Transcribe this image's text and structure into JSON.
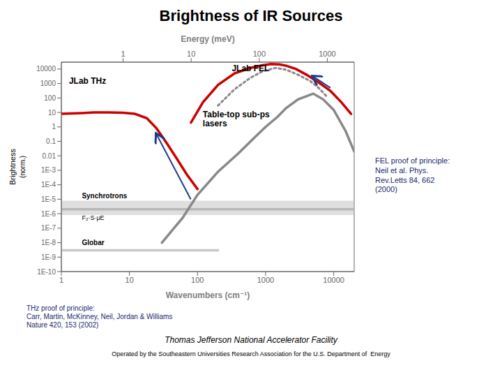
{
  "chart_data": {
    "type": "line",
    "title": "Brightness of IR Sources",
    "xlabel": "Wavenumbers (cm⁻¹)",
    "x2label": "Energy (meV)",
    "ylabel": "Brightness",
    "log": true,
    "grid": false,
    "xlim": [
      1,
      20000
    ],
    "xticks": [
      1,
      10,
      100,
      1000,
      10000
    ],
    "x2lim": [
      1,
      20000
    ],
    "x2ticks": [
      {
        "value": 8.065,
        "label": "1"
      },
      {
        "value": 80.65,
        "label": "10"
      },
      {
        "value": 806.5,
        "label": "100"
      },
      {
        "value": 8065,
        "label": "1000"
      }
    ],
    "ylim": [
      1e-10,
      30000
    ],
    "yticks": [
      {
        "value": 1e-10,
        "label": "1E-10"
      },
      {
        "value": 1e-09,
        "label": "1E-9"
      },
      {
        "value": 1e-08,
        "label": "1E-8"
      },
      {
        "value": 1e-07,
        "label": "1E-7"
      },
      {
        "value": 1e-06,
        "label": "1E-6"
      },
      {
        "value": 1e-05,
        "label": "1E-5"
      },
      {
        "value": 0.0001,
        "label": "1E-4"
      },
      {
        "value": 0.001,
        "label": "1E-3"
      },
      0.01,
      0.1,
      1,
      10,
      100,
      1000,
      10000
    ],
    "series": [
      {
        "color": "#b8b8b8",
        "x": [
          1,
          20,
          50,
          100,
          300,
          1000,
          3000,
          10000,
          20000
        ],
        "values": [
          2e-06,
          2e-06,
          2e-06,
          2e-06,
          2e-06,
          2e-06,
          2e-06,
          2e-06,
          2e-06
        ],
        "band_low": [
          8e-07,
          8e-07,
          8e-07,
          8e-07,
          8e-07,
          8e-07,
          8e-07,
          8e-07,
          8e-07
        ],
        "band_high": [
          8e-06,
          8e-06,
          8e-06,
          8e-06,
          8e-06,
          8e-06,
          8e-06,
          8e-06,
          8e-06
        ]
      },
      {
        "color": "#c8c8c8",
        "x": [
          1,
          5,
          10,
          50,
          100,
          200
        ],
        "values": [
          3e-09,
          3e-09,
          3e-09,
          3e-09,
          3e-09,
          3e-09
        ]
      },
      {
        "color": "#888888",
        "x": [
          30,
          60,
          100,
          200,
          400,
          700,
          1000,
          1500,
          2000,
          3000,
          5000,
          7000,
          10000,
          15000,
          20000
        ],
        "values": [
          1e-08,
          5e-07,
          2e-05,
          0.0008,
          0.015,
          0.2,
          1.0,
          5,
          20,
          80,
          200,
          80,
          15,
          0.5,
          0.02
        ]
      },
      {
        "color": "#cc0000",
        "x": [
          1,
          2,
          3,
          5,
          8,
          12,
          18,
          25,
          35,
          50,
          70,
          100
        ],
        "values": [
          8,
          9,
          10,
          10,
          9.5,
          8,
          4,
          0.8,
          0.08,
          0.006,
          0.0005,
          5e-05
        ]
      },
      {
        "color": "#cc0000",
        "x": [
          80,
          120,
          200,
          350,
          600,
          900,
          1200,
          1600,
          2000,
          2800,
          4000,
          6000,
          9000,
          13000,
          18000
        ],
        "values": [
          2,
          50,
          800,
          5000,
          12000,
          18000,
          22000,
          21000,
          17000,
          10000,
          4000,
          1200,
          300,
          50,
          8
        ]
      },
      {
        "color": "#888888",
        "line_style": "dotted",
        "x": [
          200,
          350,
          600,
          900,
          1400,
          2000,
          3000,
          4500,
          6000,
          8000
        ],
        "values": [
          30,
          400,
          2500,
          7000,
          12000,
          9000,
          4000,
          1500,
          500,
          120
        ]
      }
    ],
    "annotations": [
      "JLab THz",
      "JLab FEL",
      "Table-top sub-ps\nlasers",
      "Synchrotrons",
      "F₂·S·μE",
      "Globar",
      "FEL proof of principle:\nNeil et al. Phys.\nRev.Letts 84, 662\n(2000)",
      "THz proof of principle:\nCarr, Martin, McKinney, Neil, Jordan & Williams\nNature 420, 153 (2002)",
      "(norm.)",
      "Thomas Jefferson National Accelerator Facility",
      "Operated by the Southeastern Universities Research Association for the U.S. Department of  Energy"
    ]
  }
}
